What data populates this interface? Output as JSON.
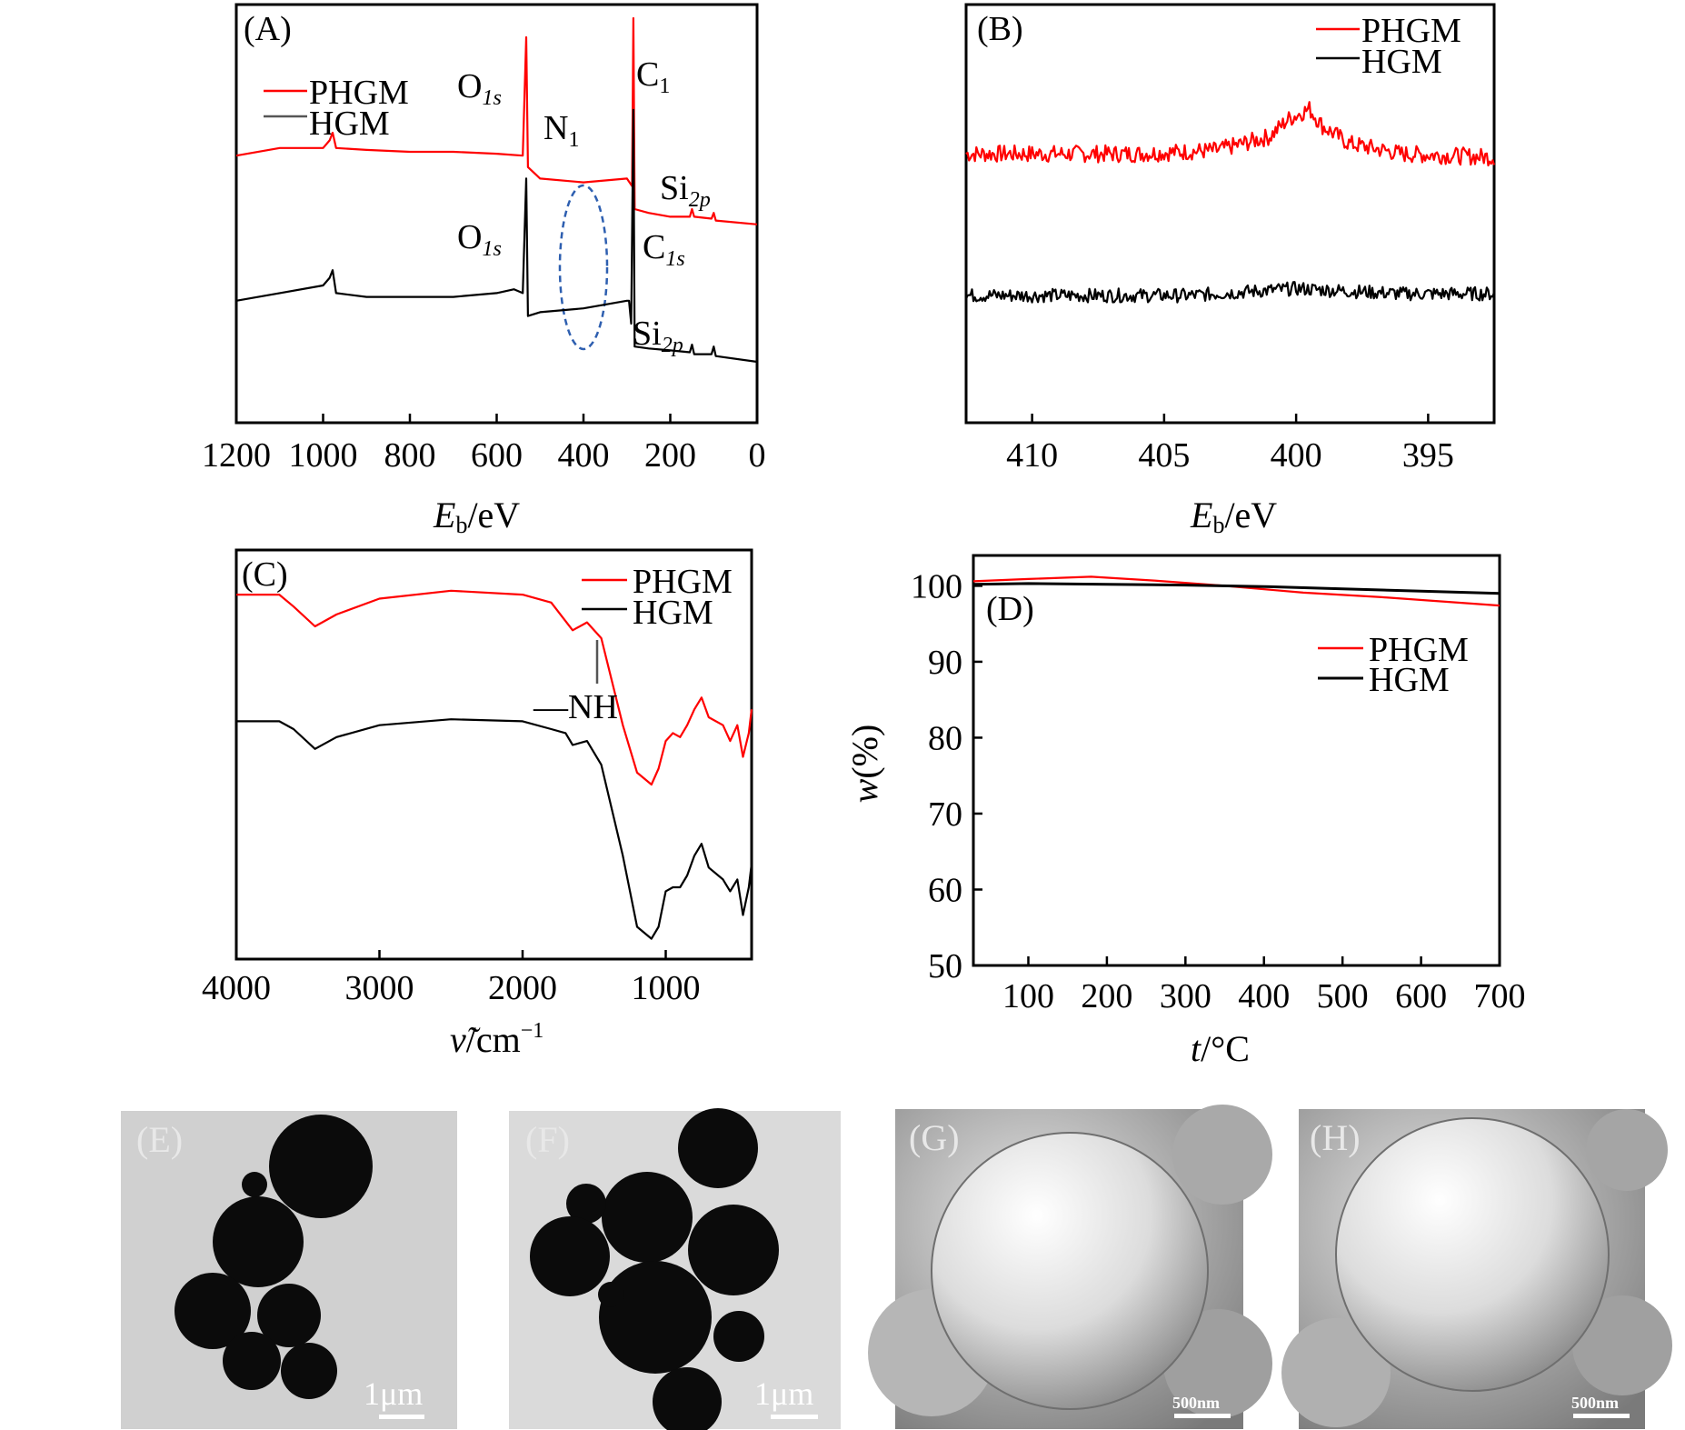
{
  "colors": {
    "phgm": "#ff0000",
    "hgm": "#000000",
    "ellipse": "#2e5fb0"
  },
  "chart_data": [
    {
      "id": "A",
      "type": "line",
      "panel_label": "(A)",
      "xlabel": {
        "italic": "E",
        "sub": "b",
        "rest": "/eV"
      },
      "xlim": [
        1200,
        0
      ],
      "xticks": [
        "1200",
        "1000",
        "800",
        "600",
        "400",
        "200",
        "0"
      ],
      "legend": [
        "PHGM",
        "HGM"
      ],
      "legend_position": "top-left",
      "annotations": {
        "o1s_top": {
          "base": "O",
          "sub": "1s"
        },
        "n1": {
          "base": "N",
          "sub": "1"
        },
        "c1_top": {
          "base": "C",
          "sub": "1"
        },
        "si2p_top": {
          "base": "Si",
          "sub": "2p"
        },
        "o1s_bottom": {
          "base": "O",
          "sub": "1s"
        },
        "c1s_bottom": {
          "base": "C",
          "sub": "1s"
        },
        "si2p_bottom": {
          "base": "Si",
          "sub": "2p"
        }
      },
      "series": [
        {
          "name": "PHGM",
          "points": [
            [
              1200,
              0.64
            ],
            [
              1100,
              0.66
            ],
            [
              1000,
              0.66
            ],
            [
              985,
              0.68
            ],
            [
              978,
              0.7
            ],
            [
              970,
              0.66
            ],
            [
              900,
              0.655
            ],
            [
              800,
              0.65
            ],
            [
              700,
              0.65
            ],
            [
              600,
              0.645
            ],
            [
              540,
              0.64
            ],
            [
              532,
              0.95
            ],
            [
              528,
              0.61
            ],
            [
              500,
              0.58
            ],
            [
              400,
              0.57
            ],
            [
              300,
              0.58
            ],
            [
              288,
              0.56
            ],
            [
              285,
              1.0
            ],
            [
              282,
              0.5
            ],
            [
              250,
              0.49
            ],
            [
              200,
              0.48
            ],
            [
              155,
              0.48
            ],
            [
              150,
              0.5
            ],
            [
              145,
              0.48
            ],
            [
              105,
              0.475
            ],
            [
              100,
              0.49
            ],
            [
              95,
              0.47
            ],
            [
              0,
              0.46
            ]
          ]
        },
        {
          "name": "HGM",
          "points": [
            [
              1200,
              0.26
            ],
            [
              1100,
              0.28
            ],
            [
              1000,
              0.3
            ],
            [
              985,
              0.32
            ],
            [
              978,
              0.34
            ],
            [
              970,
              0.28
            ],
            [
              900,
              0.27
            ],
            [
              800,
              0.27
            ],
            [
              700,
              0.27
            ],
            [
              600,
              0.28
            ],
            [
              560,
              0.29
            ],
            [
              540,
              0.28
            ],
            [
              532,
              0.58
            ],
            [
              528,
              0.22
            ],
            [
              500,
              0.23
            ],
            [
              400,
              0.24
            ],
            [
              300,
              0.26
            ],
            [
              295,
              0.26
            ],
            [
              290,
              0.2
            ],
            [
              285,
              0.76
            ],
            [
              282,
              0.14
            ],
            [
              250,
              0.135
            ],
            [
              200,
              0.13
            ],
            [
              155,
              0.125
            ],
            [
              150,
              0.145
            ],
            [
              145,
              0.12
            ],
            [
              105,
              0.12
            ],
            [
              100,
              0.14
            ],
            [
              95,
              0.115
            ],
            [
              0,
              0.1
            ]
          ]
        }
      ]
    },
    {
      "id": "B",
      "type": "line",
      "panel_label": "(B)",
      "xlabel": {
        "italic": "E",
        "sub": "b",
        "rest": "/eV"
      },
      "xlim": [
        412.5,
        392.5
      ],
      "xticks": [
        "410",
        "405",
        "400",
        "395"
      ],
      "xtick_values": [
        410,
        405,
        400,
        395
      ],
      "legend": [
        "PHGM",
        "HGM"
      ],
      "legend_position": "top-right",
      "series": [
        {
          "name": "PHGM",
          "noise": 0.025,
          "points": [
            [
              412.5,
              0.66
            ],
            [
              406,
              0.66
            ],
            [
              403,
              0.67
            ],
            [
              401,
              0.71
            ],
            [
              400.3,
              0.76
            ],
            [
              399.5,
              0.79
            ],
            [
              399,
              0.74
            ],
            [
              398,
              0.69
            ],
            [
              396,
              0.66
            ],
            [
              392.5,
              0.65
            ]
          ]
        },
        {
          "name": "HGM",
          "noise": 0.02,
          "points": [
            [
              412.5,
              0.25
            ],
            [
              404,
              0.25
            ],
            [
              400,
              0.27
            ],
            [
              396,
              0.255
            ],
            [
              392.5,
              0.255
            ]
          ]
        }
      ]
    },
    {
      "id": "C",
      "type": "line",
      "panel_label": "(C)",
      "xlabel": {
        "italic": "ν̃",
        "sub": "",
        "rest": "/cm",
        "sup": "−1"
      },
      "xlim": [
        4000,
        400
      ],
      "xticks": [
        "4000",
        "3000",
        "2000",
        "1000"
      ],
      "xtick_values": [
        4000,
        3000,
        2000,
        1000
      ],
      "legend": [
        "PHGM",
        "HGM"
      ],
      "legend_position": "top-right",
      "annotations": {
        "nh": "—NH"
      },
      "series": [
        {
          "name": "PHGM",
          "points": [
            [
              4000,
              0.91
            ],
            [
              3700,
              0.91
            ],
            [
              3600,
              0.88
            ],
            [
              3450,
              0.83
            ],
            [
              3300,
              0.86
            ],
            [
              3000,
              0.9
            ],
            [
              2500,
              0.92
            ],
            [
              2000,
              0.91
            ],
            [
              1800,
              0.89
            ],
            [
              1650,
              0.82
            ],
            [
              1550,
              0.84
            ],
            [
              1450,
              0.8
            ],
            [
              1300,
              0.58
            ],
            [
              1200,
              0.46
            ],
            [
              1100,
              0.43
            ],
            [
              1050,
              0.47
            ],
            [
              1000,
              0.54
            ],
            [
              950,
              0.56
            ],
            [
              900,
              0.55
            ],
            [
              850,
              0.58
            ],
            [
              800,
              0.62
            ],
            [
              750,
              0.65
            ],
            [
              700,
              0.6
            ],
            [
              600,
              0.58
            ],
            [
              550,
              0.54
            ],
            [
              500,
              0.58
            ],
            [
              460,
              0.5
            ],
            [
              420,
              0.56
            ],
            [
              400,
              0.62
            ]
          ]
        },
        {
          "name": "HGM",
          "points": [
            [
              4000,
              0.59
            ],
            [
              3700,
              0.59
            ],
            [
              3600,
              0.57
            ],
            [
              3450,
              0.52
            ],
            [
              3300,
              0.55
            ],
            [
              3000,
              0.58
            ],
            [
              2500,
              0.595
            ],
            [
              2000,
              0.59
            ],
            [
              1800,
              0.57
            ],
            [
              1700,
              0.56
            ],
            [
              1650,
              0.53
            ],
            [
              1550,
              0.54
            ],
            [
              1450,
              0.48
            ],
            [
              1300,
              0.25
            ],
            [
              1200,
              0.07
            ],
            [
              1100,
              0.04
            ],
            [
              1050,
              0.07
            ],
            [
              1000,
              0.16
            ],
            [
              950,
              0.17
            ],
            [
              900,
              0.17
            ],
            [
              850,
              0.2
            ],
            [
              800,
              0.25
            ],
            [
              750,
              0.28
            ],
            [
              700,
              0.22
            ],
            [
              600,
              0.19
            ],
            [
              550,
              0.16
            ],
            [
              500,
              0.19
            ],
            [
              460,
              0.1
            ],
            [
              420,
              0.17
            ],
            [
              400,
              0.23
            ]
          ]
        }
      ]
    },
    {
      "id": "D",
      "type": "line",
      "panel_label": "(D)",
      "xlabel": {
        "italic": "t",
        "sub": "",
        "rest": "/°C"
      },
      "ylabel": {
        "italic": "w",
        "rest": "(%)"
      },
      "xlim": [
        30,
        700
      ],
      "ylim": [
        50,
        104
      ],
      "xticks": [
        "100",
        "200",
        "300",
        "400",
        "500",
        "600",
        "700"
      ],
      "xtick_values": [
        100,
        200,
        300,
        400,
        500,
        600,
        700
      ],
      "yticks": [
        "50",
        "60",
        "70",
        "80",
        "90",
        "100"
      ],
      "ytick_values": [
        50,
        60,
        70,
        80,
        90,
        100
      ],
      "legend": [
        "PHGM",
        "HGM"
      ],
      "legend_position": "right",
      "series": [
        {
          "name": "PHGM",
          "points": [
            [
              30,
              100.6
            ],
            [
              100,
              100.9
            ],
            [
              180,
              101.2
            ],
            [
              260,
              100.7
            ],
            [
              350,
              100.0
            ],
            [
              450,
              99.1
            ],
            [
              550,
              98.5
            ],
            [
              700,
              97.4
            ]
          ]
        },
        {
          "name": "HGM",
          "points": [
            [
              30,
              100.2
            ],
            [
              100,
              100.3
            ],
            [
              200,
              100.2
            ],
            [
              300,
              100.1
            ],
            [
              400,
              99.9
            ],
            [
              500,
              99.6
            ],
            [
              600,
              99.3
            ],
            [
              700,
              99.0
            ]
          ]
        }
      ]
    }
  ],
  "micrographs": [
    {
      "label": "(E)",
      "scale": "1μm"
    },
    {
      "label": "(F)",
      "scale": "1μm"
    },
    {
      "label": "(G)",
      "scale": "500nm"
    },
    {
      "label": "(H)",
      "scale": "500nm"
    }
  ]
}
